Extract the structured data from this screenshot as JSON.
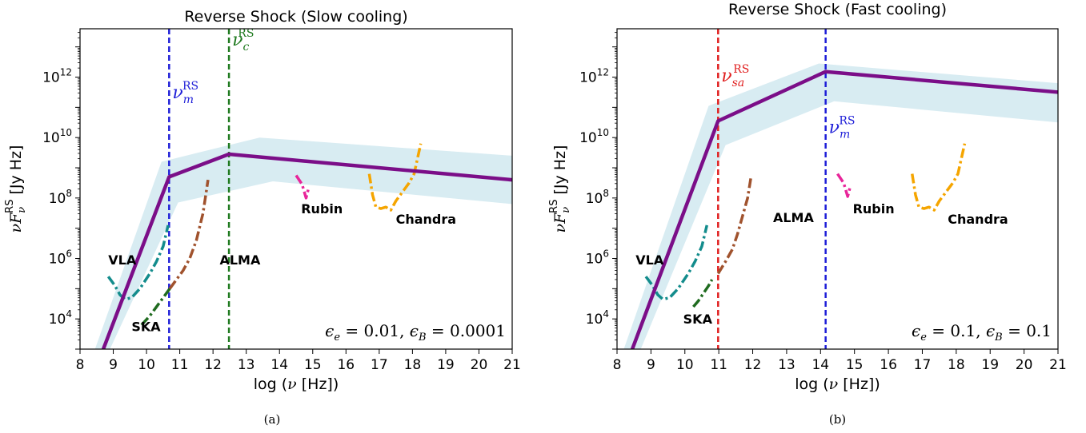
{
  "chart_data": [
    {
      "type": "line",
      "title": "Reverse Shock (Slow cooling)",
      "xlabel": "log (ν [Hz])",
      "ylabel": "νF_ν^RS [Jy Hz]",
      "xlim": [
        8,
        21
      ],
      "ylim_log10": [
        3,
        13.6
      ],
      "y_log": true,
      "xticks": [
        "8",
        "9",
        "10",
        "11",
        "12",
        "13",
        "14",
        "15",
        "16",
        "17",
        "18",
        "19",
        "20",
        "21"
      ],
      "yticks": [
        {
          "exp": 4,
          "base": "10",
          "sup": "4"
        },
        {
          "exp": 6,
          "base": "10",
          "sup": "6"
        },
        {
          "exp": 8,
          "base": "10",
          "sup": "8"
        },
        {
          "exp": 10,
          "base": "10",
          "sup": "10"
        },
        {
          "exp": 12,
          "base": "10",
          "sup": "12"
        }
      ],
      "caption": "(a)",
      "params_label": "ϵ_e = 0.01, ϵ_B = 0.0001",
      "model": {
        "color": "#7b0e88",
        "x": [
          8.7,
          10.68,
          12.48,
          21.0
        ],
        "log10_y": [
          3.0,
          8.7,
          9.45,
          8.6
        ]
      },
      "band": {
        "color": "#d8ecf2",
        "upper_x": [
          8.45,
          10.45,
          13.4,
          21.0
        ],
        "upper_log10_y": [
          3.0,
          9.2,
          10.0,
          9.4
        ],
        "lower_x": [
          8.9,
          10.95,
          13.8,
          21.0
        ],
        "lower_log10_y": [
          3.0,
          7.85,
          8.55,
          7.8
        ]
      },
      "vlines": [
        {
          "x": 10.68,
          "color": "#1f1fd8",
          "symbol": "ν",
          "sub": "m",
          "sup": "RS",
          "label_log10_y": 11.3
        },
        {
          "x": 12.48,
          "color": "#1f7a1f",
          "symbol": "ν",
          "sub": "c",
          "sup": "RS",
          "label_log10_y": 13.05
        }
      ],
      "instruments": [
        {
          "name": "VLA",
          "color": "#138c8c",
          "x": [
            8.85,
            9.05,
            9.2,
            9.35,
            9.55,
            9.8,
            10.1,
            10.3,
            10.5,
            10.65
          ],
          "log10_y": [
            5.4,
            5.1,
            4.8,
            4.65,
            4.7,
            5.0,
            5.5,
            5.9,
            6.4,
            7.1
          ],
          "label_x": 8.85,
          "label_log10_y": 5.8
        },
        {
          "name": "SKA",
          "color": "#1f6b1f",
          "x": [
            9.85,
            10.1,
            10.3,
            10.5,
            10.7
          ],
          "log10_y": [
            3.8,
            4.1,
            4.4,
            4.7,
            5.0
          ],
          "label_x": 9.55,
          "label_log10_y": 3.6
        },
        {
          "name": "ALMA",
          "color": "#a0522d",
          "x": [
            10.7,
            10.9,
            11.1,
            11.3,
            11.5,
            11.7,
            11.85
          ],
          "log10_y": [
            5.0,
            5.3,
            5.6,
            6.0,
            6.6,
            7.5,
            8.6
          ],
          "label_x": 12.2,
          "label_log10_y": 5.8
        },
        {
          "name": "Rubin",
          "color": "#e8259a",
          "x": [
            14.5,
            14.68,
            14.8,
            14.88
          ],
          "log10_y": [
            8.75,
            8.45,
            8.0,
            8.35
          ],
          "label_x": 14.65,
          "label_log10_y": 7.5
        },
        {
          "name": "Chandra",
          "color": "#f5a500",
          "x": [
            16.7,
            16.8,
            16.9,
            17.05,
            17.2,
            17.35,
            17.5,
            17.7,
            17.9,
            18.05,
            18.15,
            18.25
          ],
          "log10_y": [
            8.8,
            8.1,
            7.7,
            7.65,
            7.7,
            7.6,
            7.9,
            8.2,
            8.5,
            8.8,
            9.3,
            9.8
          ],
          "label_x": 17.5,
          "label_log10_y": 7.15
        }
      ]
    },
    {
      "type": "line",
      "title": "Reverse Shock (Fast cooling)",
      "xlabel": "log (ν [Hz])",
      "ylabel": "νF_ν^RS [Jy Hz]",
      "xlim": [
        8,
        21
      ],
      "ylim_log10": [
        3,
        13.6
      ],
      "y_log": true,
      "xticks": [
        "8",
        "9",
        "10",
        "11",
        "12",
        "13",
        "14",
        "15",
        "16",
        "17",
        "18",
        "19",
        "20",
        "21"
      ],
      "yticks": [
        {
          "exp": 4,
          "base": "10",
          "sup": "4"
        },
        {
          "exp": 6,
          "base": "10",
          "sup": "6"
        },
        {
          "exp": 8,
          "base": "10",
          "sup": "8"
        },
        {
          "exp": 10,
          "base": "10",
          "sup": "10"
        },
        {
          "exp": 12,
          "base": "10",
          "sup": "12"
        }
      ],
      "caption": "(b)",
      "params_label": "ϵ_e = 0.1, ϵ_B = 0.1",
      "model": {
        "color": "#7b0e88",
        "x": [
          8.45,
          10.98,
          14.15,
          21.0
        ],
        "log10_y": [
          3.0,
          10.55,
          12.18,
          11.5
        ]
      },
      "band": {
        "color": "#d8ecf2",
        "upper_x": [
          8.2,
          10.7,
          13.95,
          21.0
        ],
        "upper_log10_y": [
          3.0,
          11.05,
          12.45,
          11.8
        ],
        "lower_x": [
          8.7,
          11.2,
          14.4,
          21.0
        ],
        "lower_log10_y": [
          3.0,
          9.75,
          11.2,
          10.5
        ]
      },
      "vlines": [
        {
          "x": 10.98,
          "color": "#e02020",
          "symbol": "ν",
          "sub": "sa",
          "sup": "RS",
          "label_log10_y": 11.85
        },
        {
          "x": 14.15,
          "color": "#1f1fd8",
          "symbol": "ν",
          "sub": "m",
          "sup": "RS",
          "label_log10_y": 10.15
        }
      ],
      "instruments": [
        {
          "name": "VLA",
          "color": "#138c8c",
          "x": [
            8.85,
            9.05,
            9.2,
            9.35,
            9.55,
            9.8,
            10.1,
            10.3,
            10.5,
            10.65
          ],
          "log10_y": [
            5.4,
            5.1,
            4.8,
            4.65,
            4.7,
            5.0,
            5.5,
            5.9,
            6.4,
            7.1
          ],
          "label_x": 8.55,
          "label_log10_y": 5.8
        },
        {
          "name": "SKA",
          "color": "#1f6b1f",
          "x": [
            10.25,
            10.4,
            10.55,
            10.7,
            10.8
          ],
          "log10_y": [
            4.4,
            4.6,
            4.85,
            5.1,
            5.3
          ],
          "label_x": 9.95,
          "label_log10_y": 3.85
        },
        {
          "name": "ALMA",
          "color": "#a0522d",
          "x": [
            10.98,
            11.2,
            11.4,
            11.55,
            11.7,
            11.85,
            11.95
          ],
          "log10_y": [
            5.5,
            5.9,
            6.3,
            6.8,
            7.4,
            8.0,
            8.7
          ],
          "label_x": 12.6,
          "label_log10_y": 7.2
        },
        {
          "name": "Rubin",
          "color": "#e8259a",
          "x": [
            14.5,
            14.68,
            14.8,
            14.88
          ],
          "log10_y": [
            8.8,
            8.5,
            8.05,
            8.4
          ],
          "label_x": 14.95,
          "label_log10_y": 7.5
        },
        {
          "name": "Chandra",
          "color": "#f5a500",
          "x": [
            16.7,
            16.8,
            16.9,
            17.05,
            17.2,
            17.35,
            17.5,
            17.7,
            17.9,
            18.05,
            18.15,
            18.25
          ],
          "log10_y": [
            8.8,
            8.1,
            7.7,
            7.65,
            7.7,
            7.6,
            7.9,
            8.2,
            8.5,
            8.8,
            9.3,
            9.8
          ],
          "label_x": 17.75,
          "label_log10_y": 7.15
        }
      ]
    }
  ]
}
